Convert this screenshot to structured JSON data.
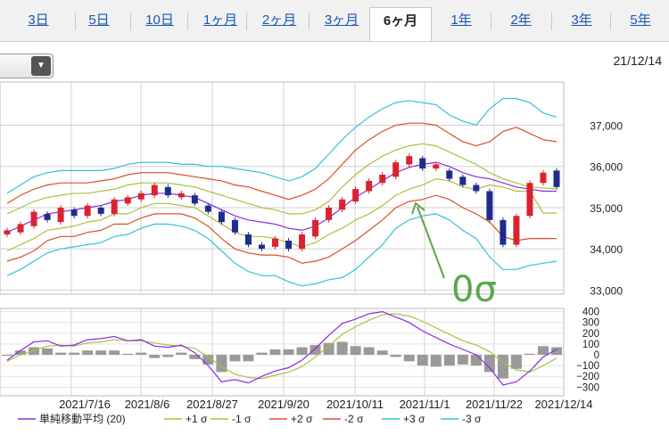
{
  "tabs": [
    {
      "label": "3日",
      "active": false
    },
    {
      "label": "5日",
      "active": false
    },
    {
      "label": "10日",
      "active": false
    },
    {
      "label": "1ヶ月",
      "active": false
    },
    {
      "label": "2ヶ月",
      "active": false
    },
    {
      "label": "3ヶ月",
      "active": false
    },
    {
      "label": "6ヶ月",
      "active": true
    },
    {
      "label": "1年",
      "active": false
    },
    {
      "label": "2年",
      "active": false
    },
    {
      "label": "3年",
      "active": false
    },
    {
      "label": "5年",
      "active": false
    }
  ],
  "dropdown": {
    "arrow": "▼"
  },
  "date_label": "21/12/14",
  "chart_data": [
    {
      "type": "candlestick",
      "y_ticks": [
        "37,000",
        "36,000",
        "35,000",
        "34,000",
        "33,000"
      ],
      "ylim": [
        32900,
        38050
      ],
      "annotation": "0σ",
      "colors": {
        "up": "#d9232f",
        "down": "#1f2d8a",
        "sma": "#8a2be2",
        "p1": "#a8c23c",
        "m1": "#a8c23c",
        "p2": "#d9502a",
        "m2": "#d9502a",
        "p3": "#30c3d6",
        "m3": "#30c3d6",
        "annotation": "#5aa64a"
      },
      "sma": [
        34400,
        34550,
        34700,
        34850,
        34900,
        34950,
        35000,
        35050,
        35150,
        35200,
        35300,
        35350,
        35350,
        35300,
        35250,
        35100,
        34950,
        34800,
        34700,
        34650,
        34600,
        34500,
        34450,
        34550,
        34750,
        35000,
        35250,
        35450,
        35650,
        35850,
        35980,
        36050,
        36100,
        36000,
        35850,
        35750,
        35700,
        35600,
        35500,
        35450,
        35400,
        35400
      ],
      "upper1": [
        34850,
        35000,
        35150,
        35250,
        35300,
        35350,
        35350,
        35400,
        35450,
        35550,
        35600,
        35600,
        35600,
        35550,
        35500,
        35400,
        35300,
        35200,
        35100,
        35000,
        34950,
        34850,
        34850,
        34950,
        35150,
        35500,
        35800,
        36050,
        36250,
        36400,
        36500,
        36550,
        36500,
        36350,
        36200,
        36050,
        35850,
        35700,
        35600,
        35500,
        35480,
        35450
      ],
      "lower1": [
        33950,
        34100,
        34250,
        34450,
        34500,
        34550,
        34650,
        34700,
        34850,
        34850,
        35000,
        35100,
        35100,
        35050,
        35000,
        34800,
        34600,
        34400,
        34300,
        34300,
        34250,
        34150,
        34050,
        34150,
        34350,
        34500,
        34700,
        34850,
        35050,
        35300,
        35450,
        35550,
        35700,
        35650,
        35500,
        35450,
        35550,
        35500,
        35400,
        35400,
        34870,
        34870
      ],
      "upper2": [
        35100,
        35300,
        35450,
        35550,
        35600,
        35600,
        35600,
        35650,
        35700,
        35800,
        35850,
        35850,
        35850,
        35800,
        35750,
        35700,
        35650,
        35550,
        35500,
        35400,
        35300,
        35200,
        35300,
        35450,
        35700,
        36050,
        36400,
        36650,
        36850,
        37000,
        37050,
        37050,
        37000,
        36800,
        36600,
        36500,
        36600,
        36850,
        36950,
        36800,
        36650,
        36600
      ],
      "lower2": [
        33700,
        33800,
        33950,
        34200,
        34300,
        34300,
        34400,
        34450,
        34600,
        34600,
        34750,
        34850,
        34850,
        34850,
        34750,
        34550,
        34250,
        34000,
        33900,
        33850,
        33850,
        33800,
        33650,
        33700,
        33800,
        34000,
        34200,
        34450,
        34700,
        35000,
        35150,
        35200,
        35300,
        35200,
        35000,
        34850,
        34650,
        34300,
        34200,
        34250,
        34250,
        34250
      ],
      "upper3": [
        35350,
        35550,
        35750,
        35850,
        35900,
        35900,
        35900,
        35900,
        35950,
        36050,
        36100,
        36100,
        36100,
        36050,
        36050,
        36000,
        36000,
        35950,
        35900,
        35850,
        35750,
        35650,
        35750,
        35950,
        36300,
        36650,
        36950,
        37200,
        37400,
        37550,
        37600,
        37550,
        37500,
        37250,
        37100,
        37000,
        37400,
        37650,
        37650,
        37550,
        37300,
        37200
      ],
      "lower3": [
        33350,
        33500,
        33700,
        33900,
        34000,
        34050,
        34100,
        34150,
        34300,
        34350,
        34500,
        34600,
        34600,
        34550,
        34450,
        34250,
        33950,
        33650,
        33450,
        33350,
        33350,
        33200,
        33100,
        33150,
        33250,
        33300,
        33500,
        33800,
        34100,
        34500,
        34700,
        34800,
        34850,
        34700,
        34450,
        34250,
        33800,
        33500,
        33500,
        33600,
        33650,
        33700
      ],
      "candles": [
        [
          34350,
          34450
        ],
        [
          34400,
          34600
        ],
        [
          34550,
          34900
        ],
        [
          34850,
          34700
        ],
        [
          34650,
          35000
        ],
        [
          34950,
          34800
        ],
        [
          34800,
          35050
        ],
        [
          35000,
          34850
        ],
        [
          34850,
          35200
        ],
        [
          35100,
          35250
        ],
        [
          35200,
          35350
        ],
        [
          35300,
          35550
        ],
        [
          35500,
          35300
        ],
        [
          35250,
          35350
        ],
        [
          35300,
          35100
        ],
        [
          35050,
          34900
        ],
        [
          34900,
          34650
        ],
        [
          34700,
          34400
        ],
        [
          34350,
          34100
        ],
        [
          34100,
          34000
        ],
        [
          34050,
          34250
        ],
        [
          34200,
          34000
        ],
        [
          34000,
          34350
        ],
        [
          34300,
          34700
        ],
        [
          34700,
          35000
        ],
        [
          34950,
          35200
        ],
        [
          35150,
          35450
        ],
        [
          35400,
          35650
        ],
        [
          35600,
          35800
        ],
        [
          35750,
          36100
        ],
        [
          36050,
          36250
        ],
        [
          36200,
          35950
        ],
        [
          35950,
          36050
        ],
        [
          35900,
          35700
        ],
        [
          35750,
          35550
        ],
        [
          35550,
          35400
        ],
        [
          35400,
          34700
        ],
        [
          34700,
          34100
        ],
        [
          34100,
          34800
        ],
        [
          34800,
          35600
        ],
        [
          35600,
          35850
        ],
        [
          35900,
          35500
        ]
      ]
    },
    {
      "type": "macd",
      "y_ticks": [
        "400",
        "300",
        "200",
        "100",
        "0",
        "−100",
        "−200",
        "−300"
      ],
      "ylim": [
        -380,
        430
      ],
      "x_labels": [
        "2021/7/16",
        "2021/8/6",
        "2021/8/27",
        "2021/9/20",
        "2021/10/11",
        "2021/11/1",
        "2021/11/22",
        "2021/12/14"
      ],
      "colors": {
        "macd": "#8a2be2",
        "signal": "#a8c23c",
        "hist": "#999999"
      },
      "macd": [
        -50,
        40,
        120,
        130,
        80,
        90,
        140,
        150,
        170,
        130,
        140,
        80,
        70,
        90,
        20,
        -100,
        -250,
        -230,
        -260,
        -200,
        -150,
        -120,
        -50,
        60,
        180,
        290,
        330,
        380,
        400,
        350,
        300,
        220,
        160,
        100,
        50,
        0,
        -120,
        -280,
        -250,
        -150,
        -20,
        50
      ],
      "signal": [
        -60,
        0,
        40,
        80,
        90,
        80,
        110,
        120,
        140,
        130,
        130,
        110,
        90,
        80,
        60,
        -20,
        -110,
        -180,
        -210,
        -220,
        -190,
        -160,
        -110,
        -20,
        80,
        190,
        260,
        320,
        370,
        380,
        360,
        310,
        250,
        190,
        130,
        90,
        30,
        -70,
        -140,
        -160,
        -100,
        -30
      ],
      "hist": [
        -10,
        40,
        70,
        60,
        20,
        20,
        40,
        40,
        40,
        10,
        20,
        -30,
        -20,
        20,
        -40,
        -90,
        -160,
        -60,
        -60,
        20,
        50,
        50,
        70,
        90,
        110,
        120,
        80,
        70,
        40,
        -20,
        -60,
        -100,
        -110,
        -100,
        -90,
        -100,
        -160,
        -220,
        -130,
        10,
        80,
        70
      ]
    }
  ],
  "legend": [
    {
      "label": "単純移動平均 (20)",
      "color": "#8a2be2"
    },
    {
      "label": "+1 σ",
      "color": "#a8c23c"
    },
    {
      "label": "-1 σ",
      "color": "#a8c23c"
    },
    {
      "label": "+2 σ",
      "color": "#d9502a"
    },
    {
      "label": "-2 σ",
      "color": "#d9502a"
    },
    {
      "label": "+3 σ",
      "color": "#30c3d6"
    },
    {
      "label": "-3 σ",
      "color": "#30c3d6"
    }
  ]
}
